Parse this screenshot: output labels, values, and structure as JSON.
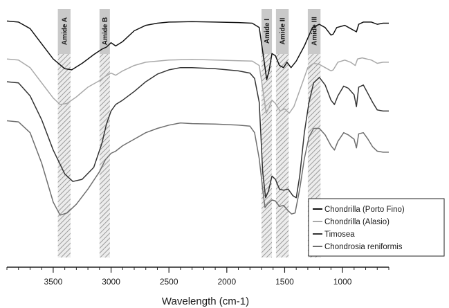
{
  "chart_data": {
    "type": "line",
    "title": "",
    "xlabel": "Wavelength (cm-1)",
    "ylabel": "",
    "x_reversed": true,
    "xlim": [
      3900,
      600
    ],
    "ylim": [
      0,
      12
    ],
    "grid": false,
    "y_axis_shown": false,
    "legend_position": "bottom-right",
    "x_ticks": [
      3500,
      3000,
      2500,
      2000,
      1500,
      1000
    ],
    "bands": [
      {
        "label": "Amide A",
        "from": 3460,
        "to": 3350
      },
      {
        "label": "Amide B",
        "from": 3100,
        "to": 3010
      },
      {
        "label": "Amide I",
        "from": 1700,
        "to": 1610
      },
      {
        "label": "Amide II",
        "from": 1575,
        "to": 1465
      },
      {
        "label": "Amide III",
        "from": 1300,
        "to": 1190
      }
    ],
    "series": [
      {
        "name": "Chondrilla (Porto Fino)",
        "color": "#111111",
        "points": [
          [
            3900,
            11.35
          ],
          [
            3800,
            11.3
          ],
          [
            3700,
            11.0
          ],
          [
            3600,
            10.3
          ],
          [
            3500,
            9.6
          ],
          [
            3400,
            9.15
          ],
          [
            3340,
            9.1
          ],
          [
            3250,
            9.4
          ],
          [
            3150,
            9.8
          ],
          [
            3080,
            10.05
          ],
          [
            3040,
            10.15
          ],
          [
            3000,
            10.35
          ],
          [
            2960,
            10.2
          ],
          [
            2900,
            10.4
          ],
          [
            2800,
            10.9
          ],
          [
            2700,
            11.15
          ],
          [
            2600,
            11.25
          ],
          [
            2500,
            11.3
          ],
          [
            2300,
            11.32
          ],
          [
            2100,
            11.3
          ],
          [
            1900,
            11.28
          ],
          [
            1780,
            11.25
          ],
          [
            1720,
            11.05
          ],
          [
            1680,
            9.6
          ],
          [
            1655,
            8.65
          ],
          [
            1635,
            9.05
          ],
          [
            1610,
            9.85
          ],
          [
            1580,
            9.75
          ],
          [
            1545,
            9.3
          ],
          [
            1510,
            9.2
          ],
          [
            1480,
            9.45
          ],
          [
            1445,
            9.2
          ],
          [
            1400,
            9.5
          ],
          [
            1330,
            10.2
          ],
          [
            1260,
            11.05
          ],
          [
            1200,
            11.2
          ],
          [
            1150,
            11.05
          ],
          [
            1100,
            10.7
          ],
          [
            1080,
            10.75
          ],
          [
            1050,
            11.05
          ],
          [
            980,
            11.15
          ],
          [
            930,
            11.0
          ],
          [
            880,
            10.85
          ],
          [
            860,
            11.2
          ],
          [
            820,
            11.3
          ],
          [
            750,
            11.3
          ],
          [
            700,
            11.2
          ],
          [
            650,
            11.25
          ],
          [
            600,
            11.25
          ]
        ]
      },
      {
        "name": "Chondrilla (Alasio)",
        "color": "#a9a9a9",
        "points": [
          [
            3900,
            9.6
          ],
          [
            3800,
            9.55
          ],
          [
            3700,
            9.2
          ],
          [
            3600,
            8.5
          ],
          [
            3500,
            7.8
          ],
          [
            3440,
            7.5
          ],
          [
            3380,
            7.55
          ],
          [
            3300,
            7.85
          ],
          [
            3200,
            8.3
          ],
          [
            3100,
            8.6
          ],
          [
            3050,
            8.8
          ],
          [
            3000,
            8.95
          ],
          [
            2960,
            8.85
          ],
          [
            2900,
            9.05
          ],
          [
            2800,
            9.3
          ],
          [
            2700,
            9.45
          ],
          [
            2500,
            9.55
          ],
          [
            2300,
            9.58
          ],
          [
            2100,
            9.55
          ],
          [
            1900,
            9.52
          ],
          [
            1780,
            9.5
          ],
          [
            1720,
            9.3
          ],
          [
            1680,
            7.9
          ],
          [
            1660,
            7.1
          ],
          [
            1640,
            7.3
          ],
          [
            1610,
            7.7
          ],
          [
            1580,
            7.55
          ],
          [
            1540,
            7.2
          ],
          [
            1500,
            7.3
          ],
          [
            1460,
            7.1
          ],
          [
            1420,
            7.4
          ],
          [
            1360,
            8.3
          ],
          [
            1300,
            9.2
          ],
          [
            1250,
            9.4
          ],
          [
            1200,
            9.35
          ],
          [
            1150,
            9.2
          ],
          [
            1100,
            9.05
          ],
          [
            1080,
            9.1
          ],
          [
            1040,
            9.45
          ],
          [
            980,
            9.55
          ],
          [
            930,
            9.45
          ],
          [
            890,
            9.3
          ],
          [
            870,
            9.6
          ],
          [
            830,
            9.65
          ],
          [
            750,
            9.55
          ],
          [
            700,
            9.4
          ],
          [
            650,
            9.45
          ],
          [
            600,
            9.45
          ]
        ]
      },
      {
        "name": "Timosea",
        "color": "#333333",
        "points": [
          [
            3900,
            8.55
          ],
          [
            3800,
            8.5
          ],
          [
            3700,
            7.9
          ],
          [
            3600,
            6.8
          ],
          [
            3500,
            5.4
          ],
          [
            3400,
            4.3
          ],
          [
            3330,
            3.95
          ],
          [
            3250,
            4.05
          ],
          [
            3150,
            4.6
          ],
          [
            3080,
            5.7
          ],
          [
            3040,
            6.6
          ],
          [
            3000,
            7.2
          ],
          [
            2960,
            7.5
          ],
          [
            2900,
            7.7
          ],
          [
            2800,
            8.1
          ],
          [
            2700,
            8.55
          ],
          [
            2600,
            8.9
          ],
          [
            2500,
            9.1
          ],
          [
            2400,
            9.2
          ],
          [
            2300,
            9.2
          ],
          [
            2100,
            9.15
          ],
          [
            1900,
            9.05
          ],
          [
            1800,
            8.95
          ],
          [
            1760,
            8.7
          ],
          [
            1720,
            7.6
          ],
          [
            1690,
            4.4
          ],
          [
            1665,
            3.2
          ],
          [
            1640,
            3.5
          ],
          [
            1610,
            4.2
          ],
          [
            1580,
            4.05
          ],
          [
            1545,
            3.6
          ],
          [
            1510,
            3.55
          ],
          [
            1470,
            3.6
          ],
          [
            1430,
            3.3
          ],
          [
            1400,
            3.2
          ],
          [
            1370,
            4.2
          ],
          [
            1330,
            6.2
          ],
          [
            1290,
            7.6
          ],
          [
            1250,
            8.5
          ],
          [
            1200,
            8.75
          ],
          [
            1150,
            8.4
          ],
          [
            1100,
            7.7
          ],
          [
            1070,
            7.5
          ],
          [
            1040,
            7.9
          ],
          [
            990,
            8.35
          ],
          [
            950,
            8.25
          ],
          [
            900,
            7.95
          ],
          [
            880,
            7.4
          ],
          [
            860,
            8.3
          ],
          [
            820,
            8.4
          ],
          [
            780,
            8.0
          ],
          [
            740,
            7.6
          ],
          [
            700,
            7.25
          ],
          [
            650,
            7.2
          ],
          [
            600,
            7.2
          ]
        ]
      },
      {
        "name": "Chondrosia reniformis",
        "color": "#6e6e6e",
        "points": [
          [
            3900,
            6.75
          ],
          [
            3800,
            6.7
          ],
          [
            3700,
            6.2
          ],
          [
            3600,
            4.8
          ],
          [
            3500,
            3.0
          ],
          [
            3440,
            2.4
          ],
          [
            3380,
            2.5
          ],
          [
            3300,
            2.9
          ],
          [
            3200,
            3.6
          ],
          [
            3100,
            4.4
          ],
          [
            3050,
            4.95
          ],
          [
            3000,
            5.25
          ],
          [
            2960,
            5.35
          ],
          [
            2900,
            5.6
          ],
          [
            2800,
            5.9
          ],
          [
            2700,
            6.2
          ],
          [
            2600,
            6.4
          ],
          [
            2500,
            6.55
          ],
          [
            2400,
            6.65
          ],
          [
            2300,
            6.62
          ],
          [
            2100,
            6.6
          ],
          [
            1900,
            6.55
          ],
          [
            1800,
            6.5
          ],
          [
            1760,
            6.2
          ],
          [
            1720,
            5.0
          ],
          [
            1690,
            3.6
          ],
          [
            1670,
            2.75
          ],
          [
            1650,
            2.9
          ],
          [
            1610,
            3.1
          ],
          [
            1580,
            3.05
          ],
          [
            1545,
            2.8
          ],
          [
            1510,
            2.85
          ],
          [
            1470,
            2.6
          ],
          [
            1440,
            2.45
          ],
          [
            1410,
            2.5
          ],
          [
            1370,
            3.6
          ],
          [
            1330,
            5.0
          ],
          [
            1290,
            6.0
          ],
          [
            1250,
            6.4
          ],
          [
            1200,
            6.4
          ],
          [
            1150,
            6.1
          ],
          [
            1100,
            5.6
          ],
          [
            1070,
            5.4
          ],
          [
            1040,
            5.8
          ],
          [
            990,
            6.2
          ],
          [
            950,
            6.1
          ],
          [
            900,
            5.9
          ],
          [
            880,
            5.5
          ],
          [
            860,
            6.15
          ],
          [
            820,
            6.2
          ],
          [
            780,
            5.9
          ],
          [
            740,
            5.55
          ],
          [
            700,
            5.35
          ],
          [
            650,
            5.3
          ],
          [
            600,
            5.3
          ]
        ]
      }
    ]
  }
}
